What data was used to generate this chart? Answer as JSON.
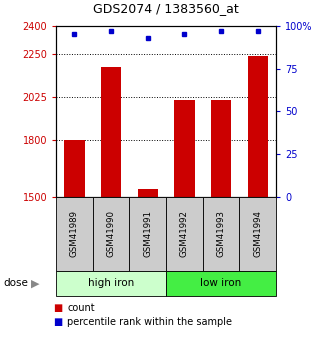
{
  "title": "GDS2074 / 1383560_at",
  "samples": [
    "GSM41989",
    "GSM41990",
    "GSM41991",
    "GSM41992",
    "GSM41993",
    "GSM41994"
  ],
  "bar_values": [
    1800,
    2185,
    1540,
    2010,
    2010,
    2240
  ],
  "percentile_values": [
    95,
    97,
    93,
    95,
    97,
    97
  ],
  "ylim_left": [
    1500,
    2400
  ],
  "ylim_right": [
    0,
    100
  ],
  "yticks_left": [
    1500,
    1800,
    2025,
    2250,
    2400
  ],
  "ytick_labels_left": [
    "1500",
    "1800",
    "2025",
    "2250",
    "2400"
  ],
  "yticks_right": [
    0,
    25,
    50,
    75,
    100
  ],
  "ytick_labels_right": [
    "0",
    "25",
    "50",
    "75",
    "100%"
  ],
  "bar_color": "#cc0000",
  "dot_color": "#0000cc",
  "group1_label": "high iron",
  "group2_label": "low iron",
  "group1_bg": "#ccffcc",
  "group2_bg": "#44ee44",
  "sample_bg": "#cccccc",
  "legend_count_label": "count",
  "legend_pct_label": "percentile rank within the sample",
  "dose_label": "dose",
  "dotted_yticks": [
    1800,
    2025,
    2250
  ],
  "bar_width": 0.55
}
